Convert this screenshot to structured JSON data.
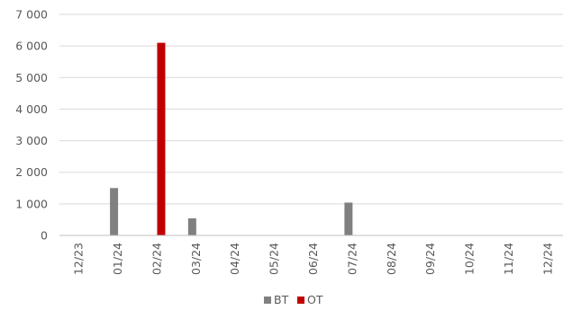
{
  "chart_data": {
    "type": "bar",
    "categories": [
      "12/23",
      "01/24",
      "02/24",
      "03/24",
      "04/24",
      "05/24",
      "06/24",
      "07/24",
      "08/24",
      "09/24",
      "10/24",
      "11/24",
      "12/24"
    ],
    "series": [
      {
        "name": "BT",
        "color": "#808080",
        "values": [
          0,
          1500,
          0,
          540,
          0,
          0,
          0,
          1040,
          0,
          0,
          0,
          0,
          0
        ]
      },
      {
        "name": "OT",
        "color": "#c00000",
        "values": [
          0,
          0,
          6100,
          0,
          0,
          0,
          0,
          0,
          0,
          0,
          0,
          0,
          0
        ]
      }
    ],
    "yticks": [
      "0",
      "1 000",
      "2 000",
      "3 000",
      "4 000",
      "5 000",
      "6 000",
      "7 000"
    ],
    "ylim": [
      0,
      7000
    ],
    "grid": true,
    "legend_position": "bottom",
    "colors": {
      "grid": "#d9d9d9",
      "axis": "#bfbfbf",
      "text": "#595959"
    }
  }
}
